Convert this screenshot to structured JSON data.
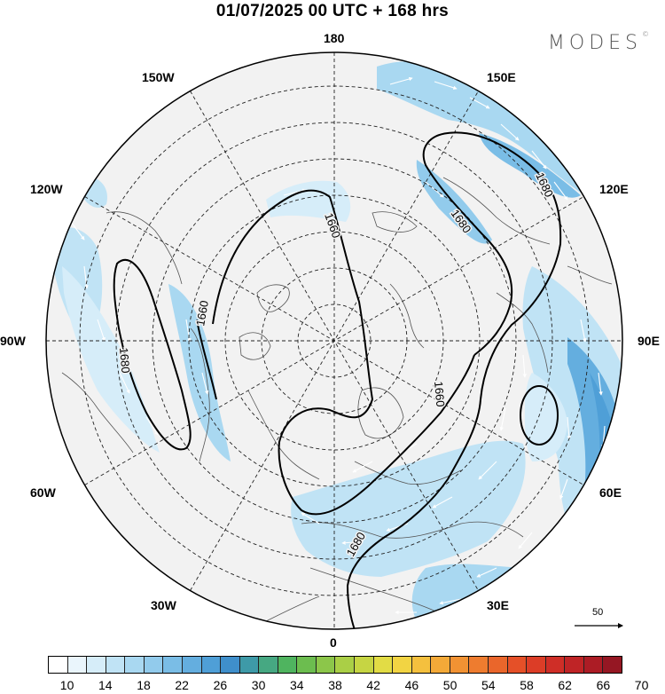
{
  "title": "01/07/2025  00 UTC  + 168 hrs",
  "brand": {
    "name": "MODES",
    "mark": "©"
  },
  "longitude_labels": {
    "top": "180",
    "bottom": "0",
    "left": "90W",
    "right": "90E",
    "nw_150": "150W",
    "nw_120": "120W",
    "sw_60": "60W",
    "sw_30": "30W",
    "ne_150": "150E",
    "ne_120": "120E",
    "se_60": "60E",
    "se_30": "30E"
  },
  "contours": {
    "labels": [
      "1660",
      "1660",
      "1660",
      "1680",
      "1680",
      "1680",
      "1680"
    ]
  },
  "reference_vector": {
    "value": "50"
  },
  "colorbar": {
    "colors": [
      "#ffffff",
      "#eaf5fc",
      "#d6edf9",
      "#c0e3f5",
      "#a9d8f1",
      "#92cbec",
      "#7abde6",
      "#64aedf",
      "#4f9fd7",
      "#3f8fcb",
      "#3e9aa8",
      "#46a882",
      "#4fb45f",
      "#6cbd4f",
      "#8cc64a",
      "#aacf46",
      "#c6d543",
      "#e2dc45",
      "#f2d443",
      "#f4c03e",
      "#f3a938",
      "#f19233",
      "#ee7c2f",
      "#ea662b",
      "#e55028",
      "#dc3d27",
      "#cf2e27",
      "#bf2426",
      "#ac1c25",
      "#951723"
    ],
    "tick_labels": [
      "10",
      "14",
      "18",
      "22",
      "26",
      "30",
      "34",
      "38",
      "42",
      "46",
      "50",
      "54",
      "58",
      "62",
      "66",
      "70"
    ]
  }
}
